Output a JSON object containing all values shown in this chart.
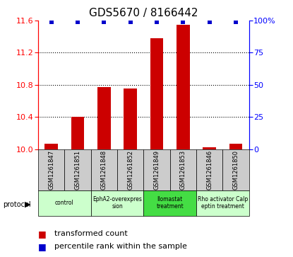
{
  "title": "GDS5670 / 8166442",
  "samples": [
    "GSM1261847",
    "GSM1261851",
    "GSM1261848",
    "GSM1261852",
    "GSM1261849",
    "GSM1261853",
    "GSM1261846",
    "GSM1261850"
  ],
  "transformed_counts": [
    10.07,
    10.4,
    10.77,
    10.75,
    11.38,
    11.55,
    10.02,
    10.07
  ],
  "percentile_ranks": [
    99,
    99,
    99,
    99,
    99,
    99,
    99,
    99
  ],
  "ylim_left": [
    10.0,
    11.6
  ],
  "ylim_right": [
    0,
    100
  ],
  "yticks_left": [
    10,
    10.4,
    10.8,
    11.2,
    11.6
  ],
  "yticks_right": [
    0,
    25,
    50,
    75,
    100
  ],
  "protocols": [
    {
      "label": "control",
      "span": [
        0,
        2
      ],
      "color": "#ccffcc"
    },
    {
      "label": "EphA2-overexpres\nsion",
      "span": [
        2,
        4
      ],
      "color": "#ccffcc"
    },
    {
      "label": "Ilomastat\ntreatment",
      "span": [
        4,
        6
      ],
      "color": "#44dd44"
    },
    {
      "label": "Rho activator Calp\neptin treatment",
      "span": [
        6,
        8
      ],
      "color": "#ccffcc"
    }
  ],
  "bar_color": "#cc0000",
  "dot_color": "#0000cc",
  "bar_width": 0.5,
  "dot_size": 25,
  "bg_color": "#ffffff",
  "sample_bg_color": "#cccccc",
  "title_fontsize": 11,
  "tick_fontsize": 8,
  "label_fontsize": 7,
  "legend_fontsize": 8
}
